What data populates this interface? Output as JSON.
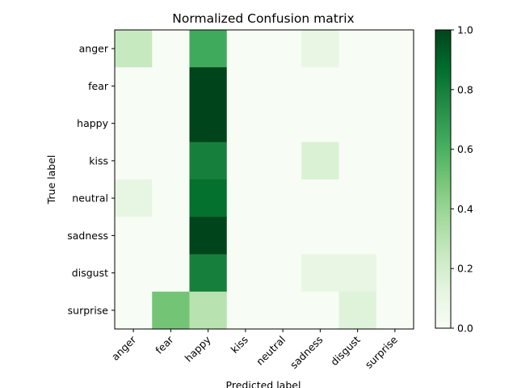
{
  "chart_data": {
    "type": "heatmap",
    "title": "Normalized Confusion matrix",
    "xlabel": "Predicted label",
    "ylabel": "True label",
    "x_categories": [
      "anger",
      "fear",
      "happy",
      "kiss",
      "neutral",
      "sadness",
      "disgust",
      "surprise"
    ],
    "y_categories": [
      "anger",
      "fear",
      "happy",
      "kiss",
      "neutral",
      "sadness",
      "disgust",
      "surprise"
    ],
    "values": [
      [
        0.25,
        0.0,
        0.63,
        0.0,
        0.0,
        0.1,
        0.0,
        0.0
      ],
      [
        0.0,
        0.0,
        1.0,
        0.0,
        0.0,
        0.0,
        0.0,
        0.0
      ],
      [
        0.0,
        0.0,
        1.0,
        0.0,
        0.0,
        0.0,
        0.0,
        0.0
      ],
      [
        0.0,
        0.0,
        0.8,
        0.0,
        0.0,
        0.17,
        0.0,
        0.0
      ],
      [
        0.11,
        0.0,
        0.86,
        0.0,
        0.0,
        0.0,
        0.0,
        0.0
      ],
      [
        0.0,
        0.0,
        1.0,
        0.0,
        0.0,
        0.0,
        0.0,
        0.0
      ],
      [
        0.0,
        0.0,
        0.8,
        0.0,
        0.0,
        0.1,
        0.1,
        0.0
      ],
      [
        0.0,
        0.5,
        0.3,
        0.0,
        0.0,
        0.0,
        0.15,
        0.0
      ]
    ],
    "colorbar": {
      "range": [
        0.0,
        1.0
      ],
      "ticks": [
        "0.0",
        "0.2",
        "0.4",
        "0.6",
        "0.8",
        "1.0"
      ],
      "colormap": "Greens"
    },
    "grid": false
  }
}
